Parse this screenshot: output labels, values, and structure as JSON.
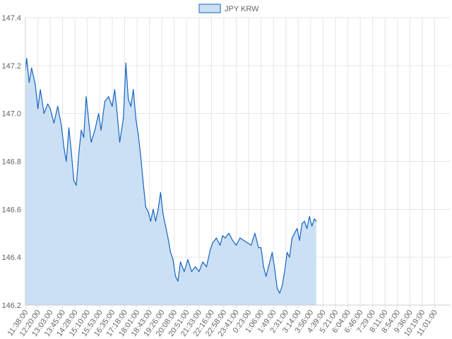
{
  "chart_data": {
    "type": "area",
    "legend_position": "top",
    "grid": true,
    "ylim": [
      146.2,
      147.4
    ],
    "y_ticks": [
      146.2,
      146.4,
      146.6,
      146.8,
      147.0,
      147.2,
      147.4
    ],
    "y_tick_labels": [
      "146.2",
      "146.4",
      "146.6",
      "146.8",
      "147.0",
      "147.2",
      "147.4"
    ],
    "x_tick_labels": [
      "11:38:00",
      "12:20:00",
      "13:03:00",
      "13:45:00",
      "14:28:00",
      "15:10:00",
      "15:53:00",
      "16:35:00",
      "17:18:00",
      "18:01:00",
      "18:43:00",
      "19:26:00",
      "20:08:00",
      "20:51:00",
      "21:33:00",
      "22:16:00",
      "22:58:00",
      "23:41:00",
      "0:23:00",
      "1:06:00",
      "1:49:00",
      "2:31:00",
      "3:14:00",
      "3:56:00",
      "4:39:00",
      "5:21:00",
      "6:04:00",
      "6:46:00",
      "7:29:00",
      "8:11:00",
      "8:54:00",
      "9:36:00",
      "10:19:00",
      "11:01:00"
    ],
    "colors": {
      "line": "#1565c0",
      "fill": "#cce0f5",
      "grid": "#e6e6e6"
    },
    "series": [
      {
        "name": "JPY KRW",
        "points": [
          [
            0,
            147.18
          ],
          [
            0.1,
            147.23
          ],
          [
            0.3,
            147.13
          ],
          [
            0.5,
            147.19
          ],
          [
            0.8,
            147.12
          ],
          [
            1.0,
            147.02
          ],
          [
            1.2,
            147.1
          ],
          [
            1.5,
            147.0
          ],
          [
            1.8,
            147.04
          ],
          [
            2.0,
            147.02
          ],
          [
            2.3,
            146.96
          ],
          [
            2.6,
            147.03
          ],
          [
            2.9,
            146.95
          ],
          [
            3.1,
            146.86
          ],
          [
            3.3,
            146.8
          ],
          [
            3.5,
            146.94
          ],
          [
            3.7,
            146.84
          ],
          [
            3.9,
            146.72
          ],
          [
            4.1,
            146.7
          ],
          [
            4.3,
            146.83
          ],
          [
            4.5,
            146.93
          ],
          [
            4.7,
            146.9
          ],
          [
            4.9,
            147.07
          ],
          [
            5.1,
            146.97
          ],
          [
            5.3,
            146.88
          ],
          [
            5.6,
            146.93
          ],
          [
            5.9,
            147.0
          ],
          [
            6.1,
            146.93
          ],
          [
            6.4,
            147.05
          ],
          [
            6.7,
            147.07
          ],
          [
            7.0,
            147.03
          ],
          [
            7.2,
            147.1
          ],
          [
            7.4,
            147.0
          ],
          [
            7.6,
            146.88
          ],
          [
            7.9,
            146.98
          ],
          [
            8.1,
            147.21
          ],
          [
            8.3,
            147.06
          ],
          [
            8.5,
            147.03
          ],
          [
            8.7,
            147.1
          ],
          [
            8.9,
            146.98
          ],
          [
            9.1,
            146.91
          ],
          [
            9.3,
            146.82
          ],
          [
            9.5,
            146.71
          ],
          [
            9.7,
            146.61
          ],
          [
            9.9,
            146.59
          ],
          [
            10.1,
            146.55
          ],
          [
            10.3,
            146.6
          ],
          [
            10.5,
            146.55
          ],
          [
            10.7,
            146.6
          ],
          [
            10.9,
            146.67
          ],
          [
            11.1,
            146.58
          ],
          [
            11.3,
            146.53
          ],
          [
            11.5,
            146.48
          ],
          [
            11.7,
            146.42
          ],
          [
            11.9,
            146.39
          ],
          [
            12.1,
            146.32
          ],
          [
            12.3,
            146.3
          ],
          [
            12.5,
            146.38
          ],
          [
            12.8,
            146.34
          ],
          [
            13.1,
            146.39
          ],
          [
            13.4,
            146.34
          ],
          [
            13.7,
            146.36
          ],
          [
            14.0,
            146.34
          ],
          [
            14.3,
            146.38
          ],
          [
            14.6,
            146.36
          ],
          [
            14.9,
            146.43
          ],
          [
            15.1,
            146.46
          ],
          [
            15.4,
            146.48
          ],
          [
            15.7,
            146.45
          ],
          [
            15.9,
            146.49
          ],
          [
            16.1,
            146.48
          ],
          [
            16.4,
            146.5
          ],
          [
            16.7,
            146.47
          ],
          [
            17.0,
            146.45
          ],
          [
            17.3,
            146.48
          ],
          [
            17.6,
            146.47
          ],
          [
            17.9,
            146.46
          ],
          [
            18.2,
            146.45
          ],
          [
            18.5,
            146.5
          ],
          [
            18.8,
            146.44
          ],
          [
            19.0,
            146.44
          ],
          [
            19.2,
            146.36
          ],
          [
            19.4,
            146.32
          ],
          [
            19.6,
            146.36
          ],
          [
            19.8,
            146.4
          ],
          [
            19.9,
            146.42
          ],
          [
            20.1,
            146.35
          ],
          [
            20.3,
            146.27
          ],
          [
            20.5,
            146.25
          ],
          [
            20.7,
            146.28
          ],
          [
            20.9,
            146.34
          ],
          [
            21.1,
            146.42
          ],
          [
            21.3,
            146.4
          ],
          [
            21.5,
            146.48
          ],
          [
            21.7,
            146.5
          ],
          [
            21.9,
            146.52
          ],
          [
            22.1,
            146.47
          ],
          [
            22.3,
            146.54
          ],
          [
            22.5,
            146.55
          ],
          [
            22.7,
            146.52
          ],
          [
            22.9,
            146.57
          ],
          [
            23.1,
            146.53
          ],
          [
            23.3,
            146.56
          ],
          [
            23.45,
            146.55
          ]
        ]
      }
    ]
  }
}
